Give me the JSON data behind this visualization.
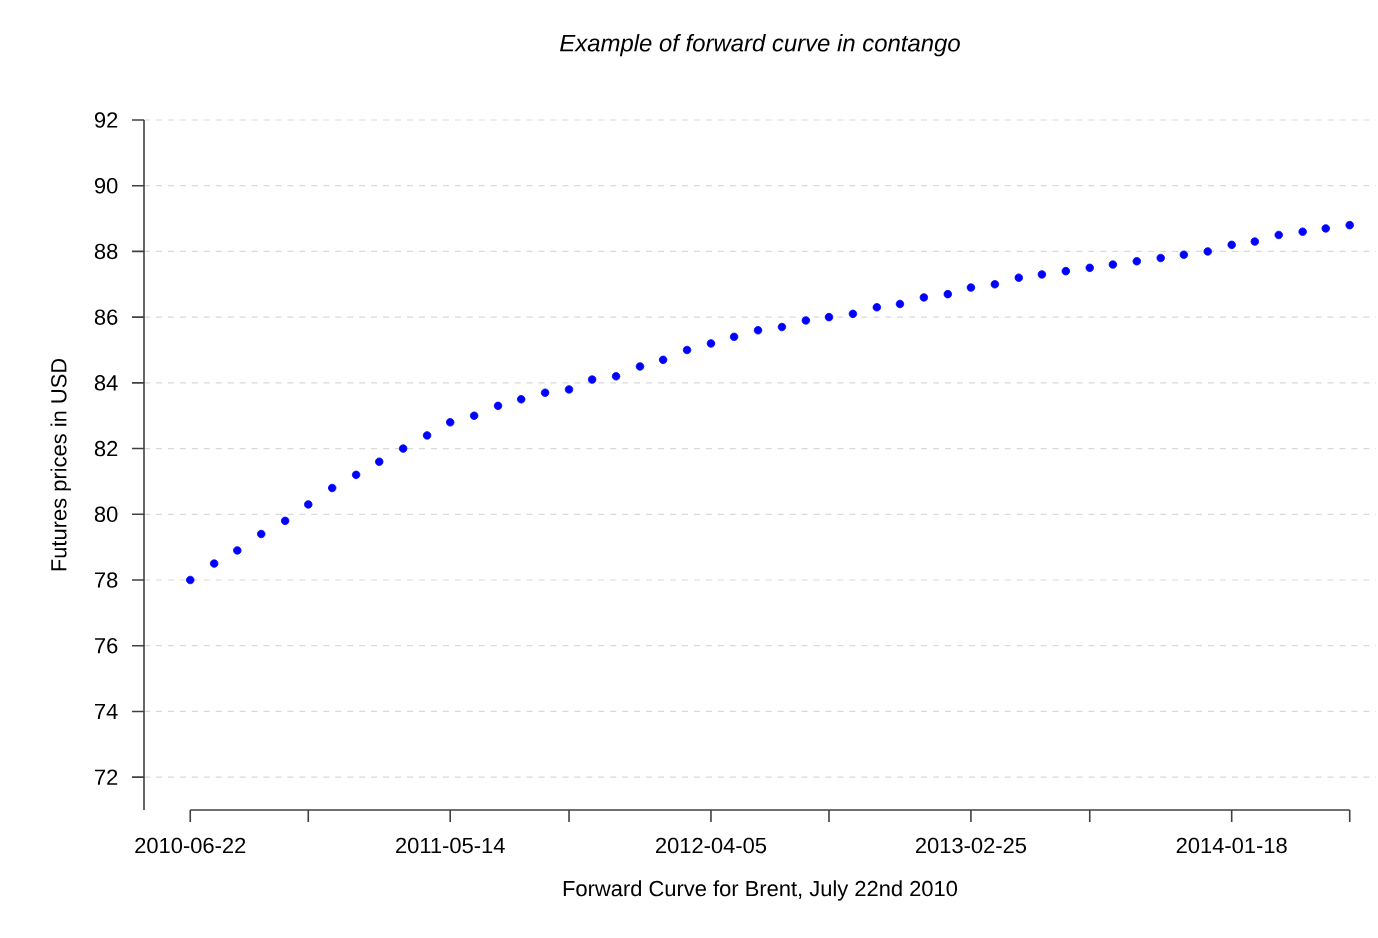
{
  "chart_data": {
    "type": "scatter",
    "title": "Example of forward curve in contango",
    "xlabel": "Forward Curve for Brent, July 22nd 2010",
    "ylabel": "Futures prices in USD",
    "x": [
      "2010-06-22",
      "2010-07-22",
      "2010-08-20",
      "2010-09-19",
      "2010-10-19",
      "2010-11-17",
      "2010-12-17",
      "2011-01-16",
      "2011-02-14",
      "2011-03-16",
      "2011-04-15",
      "2011-05-14",
      "2011-06-13",
      "2011-07-13",
      "2011-08-11",
      "2011-09-10",
      "2011-10-10",
      "2011-11-08",
      "2011-12-08",
      "2012-01-07",
      "2012-02-05",
      "2012-03-06",
      "2012-04-05",
      "2012-05-04",
      "2012-06-03",
      "2012-07-03",
      "2012-08-02",
      "2012-08-31",
      "2012-09-30",
      "2012-10-30",
      "2012-11-28",
      "2012-12-28",
      "2013-01-27",
      "2013-02-25",
      "2013-03-27",
      "2013-04-26",
      "2013-05-25",
      "2013-06-24",
      "2013-07-24",
      "2013-08-22",
      "2013-09-21",
      "2013-10-21",
      "2013-11-19",
      "2013-12-19",
      "2014-01-18",
      "2014-02-16",
      "2014-03-18",
      "2014-04-17",
      "2014-05-16",
      "2014-06-15"
    ],
    "series": [
      {
        "color": "#0000ff",
        "values": [
          78.0,
          78.5,
          78.9,
          79.4,
          79.8,
          80.3,
          80.8,
          81.2,
          81.6,
          82.0,
          82.4,
          82.8,
          83.0,
          83.3,
          83.5,
          83.7,
          83.8,
          84.1,
          84.2,
          84.5,
          84.7,
          85.0,
          85.2,
          85.4,
          85.6,
          85.7,
          85.9,
          86.0,
          86.1,
          86.3,
          86.4,
          86.6,
          86.7,
          86.9,
          87.0,
          87.2,
          87.3,
          87.4,
          87.5,
          87.6,
          87.7,
          87.8,
          87.9,
          88.0,
          88.2,
          88.3,
          88.5,
          88.6,
          88.7,
          88.8
        ]
      }
    ],
    "xlim": [
      "2010-04-25",
      "2014-07-18"
    ],
    "ylim": [
      71.0,
      92.0
    ],
    "xticks": [
      {
        "value": "2010-06-22",
        "label": "2010-06-22"
      },
      {
        "value": "2010-11-17",
        "label": null
      },
      {
        "value": "2011-05-14",
        "label": "2011-05-14"
      },
      {
        "value": "2011-10-10",
        "label": null
      },
      {
        "value": "2012-04-05",
        "label": "2012-04-05"
      },
      {
        "value": "2012-08-31",
        "label": null
      },
      {
        "value": "2013-02-25",
        "label": "2013-02-25"
      },
      {
        "value": "2013-07-24",
        "label": null
      },
      {
        "value": "2014-01-18",
        "label": "2014-01-18"
      },
      {
        "value": "2014-06-15",
        "label": null
      }
    ],
    "yticks": [
      72,
      74,
      76,
      78,
      80,
      82,
      84,
      86,
      88,
      90,
      92
    ],
    "grid": "y"
  }
}
